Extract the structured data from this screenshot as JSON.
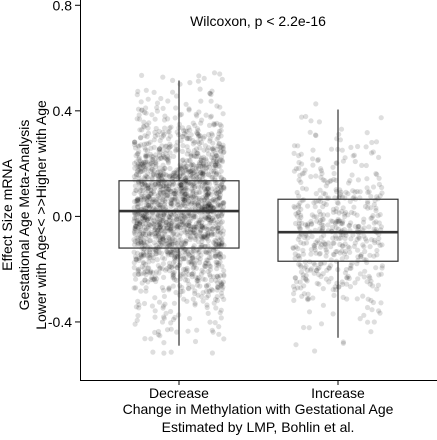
{
  "chart_data": {
    "type": "box",
    "annotation": "Wilcoxon, p < 2.2e-16",
    "xlabel_lines": [
      "Change in Methylation with Gestational Age",
      "Estimated by LMP, Bohlin et al."
    ],
    "ylabel_lines": [
      "Effect Size mRNA",
      "Gestational Age Meta-Analysis",
      "Lower with Age<< >>Higher with Age"
    ],
    "ylim": [
      -0.62,
      0.82
    ],
    "y_ticks": [
      {
        "value": 0.8,
        "label": "0.8"
      },
      {
        "value": 0.4,
        "label": "0.4"
      },
      {
        "value": 0.0,
        "label": "0.0"
      },
      {
        "value": -0.4,
        "label": "-0.4"
      }
    ],
    "categories": [
      "Decrease",
      "Increase"
    ],
    "boxes": [
      {
        "category": "Decrease",
        "min": -0.49,
        "q1": -0.12,
        "median": 0.02,
        "q3": 0.135,
        "max": 0.515
      },
      {
        "category": "Increase",
        "min": -0.46,
        "q1": -0.17,
        "median": -0.06,
        "q3": 0.065,
        "max": 0.405
      }
    ],
    "points": {
      "color": "#7f7f7f",
      "Decrease": {
        "count": 1800,
        "y_min": -0.52,
        "y_max": 0.56
      },
      "Increase": {
        "count": 500,
        "y_min": -0.58,
        "y_max": 0.55
      }
    },
    "grid": false,
    "legend": "none"
  }
}
